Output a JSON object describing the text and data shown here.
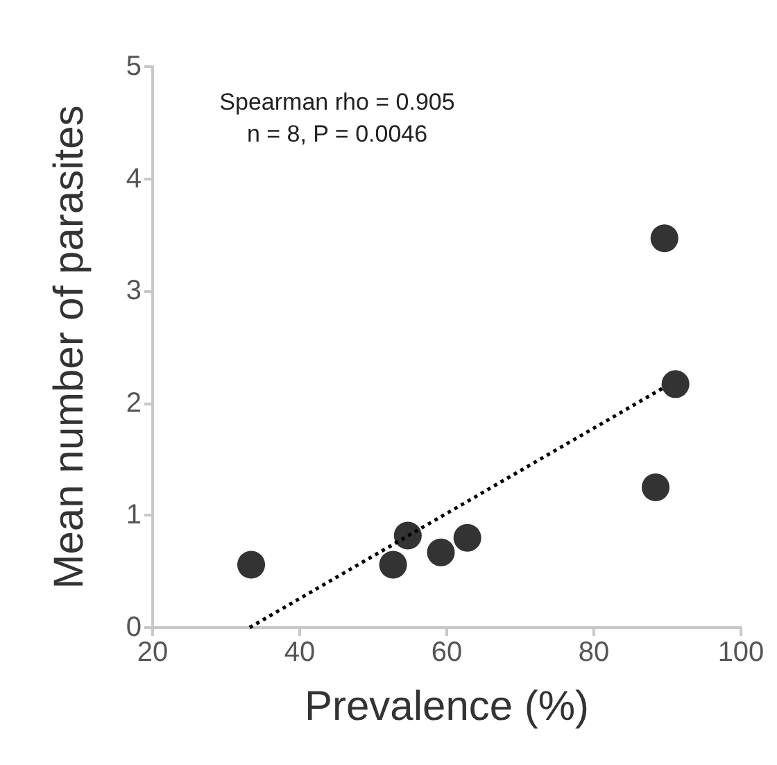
{
  "chart_data": {
    "type": "scatter",
    "xlabel": "Prevalence (%)",
    "ylabel": "Mean number of parasites",
    "annotations": [
      "Spearman rho = 0.905",
      "n = 8, P = 0.0046"
    ],
    "xlim": [
      20,
      100
    ],
    "xticks": [
      20,
      40,
      60,
      80,
      100
    ],
    "ylim": [
      0,
      5
    ],
    "yticks": [
      0,
      1,
      2,
      3,
      4,
      5
    ],
    "grid": false,
    "marker": "circle",
    "series": [
      {
        "color": "#000000",
        "x": [
          33.4,
          52.7,
          54.7,
          59.2,
          62.8,
          88.4,
          89.6,
          91.1
        ],
        "values": [
          0.56,
          0.56,
          0.82,
          0.67,
          0.8,
          1.25,
          3.47,
          2.17
        ]
      },
      {
        "type": "line",
        "color": "#000000",
        "line_style": "dotted",
        "marker": "none",
        "x": [
          33.2,
          89.8
        ],
        "values": [
          0,
          2.15
        ]
      }
    ]
  }
}
